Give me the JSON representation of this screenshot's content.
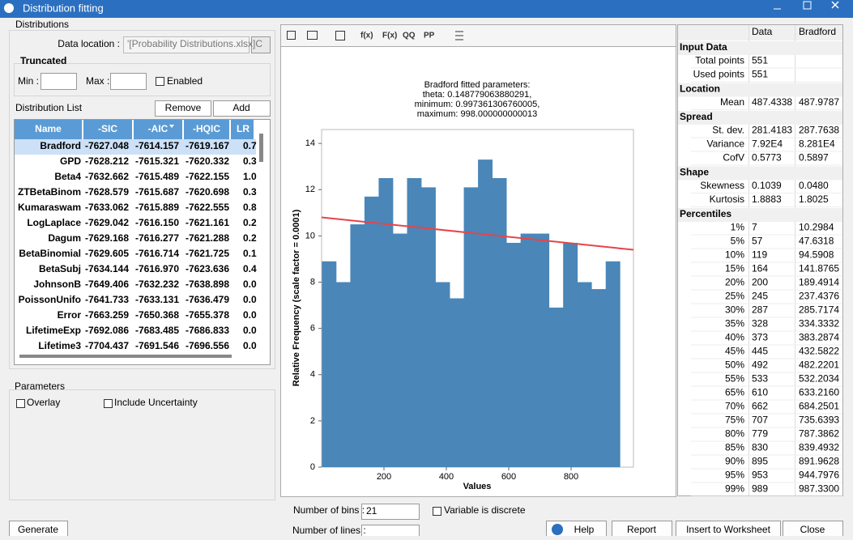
{
  "window": {
    "title": "Distribution fitting"
  },
  "distributions": {
    "group_label": "Distributions",
    "data_location_label": "Data location :",
    "data_location_value": "'[Probability Distributions.xlsx]C",
    "truncated_label": "Truncated",
    "min_label": "Min :",
    "max_label": "Max :",
    "enabled_label": "Enabled",
    "list_label": "Distribution List",
    "remove": "Remove",
    "add": "Add"
  },
  "distribution_table": {
    "columns": [
      "Name",
      "-SIC",
      "-AIC",
      "-HQIC",
      "LR"
    ],
    "rows": [
      [
        "Bradford",
        "-7627.048",
        "-7614.157",
        "-7619.167",
        "0.7"
      ],
      [
        "GPD",
        "-7628.212",
        "-7615.321",
        "-7620.332",
        "0.3"
      ],
      [
        "Beta4",
        "-7632.662",
        "-7615.489",
        "-7622.155",
        "1.0"
      ],
      [
        "ZTBetaBinom",
        "-7628.579",
        "-7615.687",
        "-7620.698",
        "0.3"
      ],
      [
        "Kumaraswam",
        "-7633.062",
        "-7615.889",
        "-7622.555",
        "0.8"
      ],
      [
        "LogLaplace",
        "-7629.042",
        "-7616.150",
        "-7621.161",
        "0.2"
      ],
      [
        "Dagum",
        "-7629.168",
        "-7616.277",
        "-7621.288",
        "0.2"
      ],
      [
        "BetaBinomial",
        "-7629.605",
        "-7616.714",
        "-7621.725",
        "0.1"
      ],
      [
        "BetaSubj",
        "-7634.144",
        "-7616.970",
        "-7623.636",
        "0.4"
      ],
      [
        "JohnsonB",
        "-7649.406",
        "-7632.232",
        "-7638.898",
        "0.0"
      ],
      [
        "PoissonUnifo",
        "-7641.733",
        "-7633.131",
        "-7636.479",
        "0.0"
      ],
      [
        "Error",
        "-7663.259",
        "-7650.368",
        "-7655.378",
        "0.0"
      ],
      [
        "LifetimeExp",
        "-7692.086",
        "-7683.485",
        "-7686.833",
        "0.0"
      ],
      [
        "Lifetime3",
        "-7704.437",
        "-7691.546",
        "-7696.556",
        "0.0"
      ]
    ]
  },
  "parameters": {
    "label": "Parameters",
    "overlay": "Overlay",
    "include_uncertainty": "Include Uncertainty"
  },
  "toolbar": [
    "f(x)",
    "F(x)",
    "QQ",
    "PP"
  ],
  "chart_data": {
    "type": "histogram",
    "title": [
      "Bradford fitted parameters:",
      "theta: 0.148779063880291,",
      "minimum: 0.997361306760005,",
      "maximum: 998.000000000013"
    ],
    "xlabel": "Values",
    "ylabel": "Relative Frequency (scale factor = 0.0001)",
    "bins": [
      1,
      46.5,
      92,
      137.5,
      183,
      228.5,
      274,
      319.5,
      365,
      410.5,
      456,
      501.5,
      547,
      592.5,
      638,
      683.5,
      729,
      774.5,
      820,
      865.5,
      911,
      956.5
    ],
    "values": [
      8.9,
      8.0,
      10.5,
      11.7,
      12.5,
      10.1,
      12.5,
      12.1,
      8.0,
      7.3,
      12.1,
      13.3,
      12.5,
      9.7,
      10.1,
      10.1,
      6.9,
      9.7,
      8.0,
      7.7,
      8.9
    ],
    "color": "#4a86b8",
    "fit_line": {
      "x": [
        0,
        1000
      ],
      "values": [
        10.8,
        9.4
      ],
      "color": "#e8434a"
    },
    "xlim": [
      0,
      1000
    ],
    "ylim": [
      0,
      14.6
    ],
    "xticks": [
      200,
      400,
      600,
      800
    ],
    "yticks": [
      0,
      2,
      4,
      6,
      8,
      10,
      12,
      14
    ]
  },
  "stats": {
    "columns": [
      "Data",
      "Bradford"
    ],
    "sections": [
      {
        "title": "Input Data",
        "rows": [
          [
            "Total points",
            "551"
          ],
          [
            "Used points",
            "551"
          ]
        ]
      },
      {
        "title": "Location",
        "rows": [
          [
            "Mean",
            "487.4338",
            "487.9787"
          ]
        ]
      },
      {
        "title": "Spread",
        "rows": [
          [
            "St. dev.",
            "281.4183",
            "287.7638"
          ],
          [
            "Variance",
            "7.92E4",
            "8.281E4"
          ],
          [
            "CofV",
            "0.5773",
            "0.5897"
          ]
        ]
      },
      {
        "title": "Shape",
        "rows": [
          [
            "Skewness",
            "0.1039",
            "0.0480"
          ],
          [
            "Kurtosis",
            "1.8883",
            "1.8025"
          ]
        ]
      },
      {
        "title": "Percentiles",
        "rows": [
          [
            "1%",
            "7",
            "10.2984"
          ],
          [
            "5%",
            "57",
            "47.6318"
          ],
          [
            "10%",
            "119",
            "94.5908"
          ],
          [
            "15%",
            "164",
            "141.8765"
          ],
          [
            "20%",
            "200",
            "189.4914"
          ],
          [
            "25%",
            "245",
            "237.4376"
          ],
          [
            "30%",
            "287",
            "285.7174"
          ],
          [
            "35%",
            "328",
            "334.3332"
          ],
          [
            "40%",
            "373",
            "383.2874"
          ],
          [
            "45%",
            "445",
            "432.5822"
          ],
          [
            "50%",
            "492",
            "482.2201"
          ],
          [
            "55%",
            "533",
            "532.2034"
          ],
          [
            "65%",
            "610",
            "633.2160"
          ],
          [
            "70%",
            "662",
            "684.2501"
          ],
          [
            "75%",
            "707",
            "735.6393"
          ],
          [
            "80%",
            "779",
            "787.3862"
          ],
          [
            "85%",
            "830",
            "839.4932"
          ],
          [
            "90%",
            "895",
            "891.9628"
          ],
          [
            "95%",
            "953",
            "944.7976"
          ],
          [
            "99%",
            "989",
            "987.3300"
          ]
        ]
      }
    ]
  },
  "bottom": {
    "bins_label": "Number of bins :",
    "bins_value": "21",
    "discrete_label": "Variable is discrete",
    "lines_label": "Number of lines :",
    "generate": "Generate",
    "help": "Help",
    "report": "Report",
    "insert": "Insert to Worksheet",
    "close": "Close"
  }
}
